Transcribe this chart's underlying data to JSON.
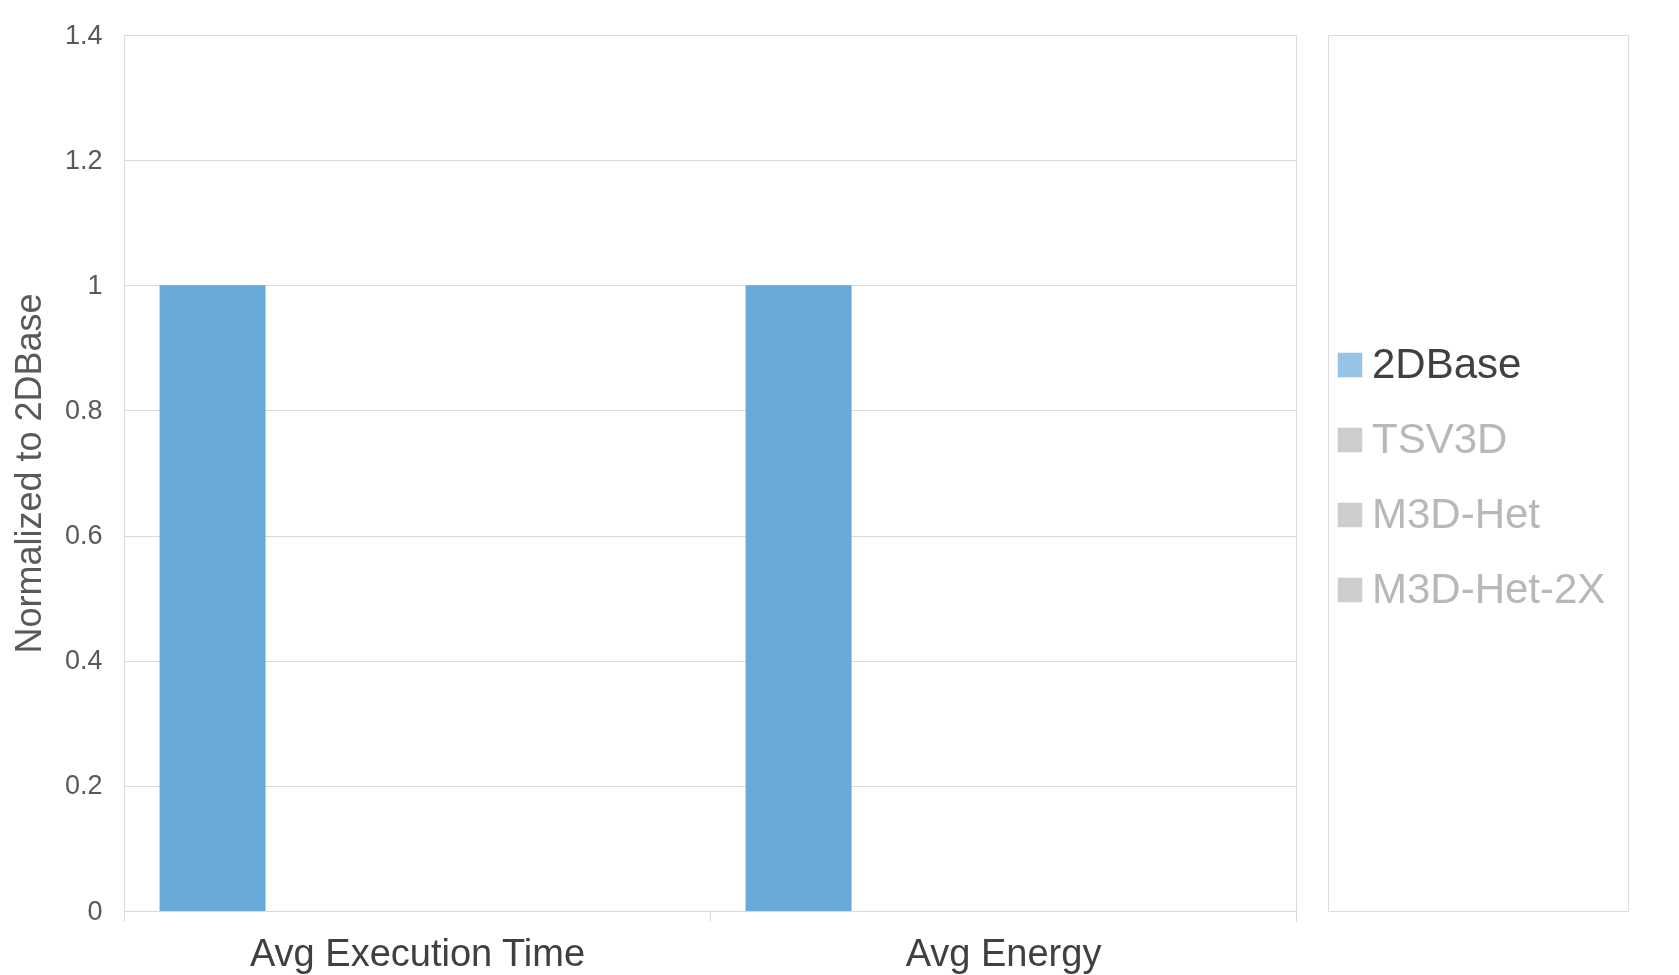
{
  "chart_data": {
    "type": "bar",
    "ylabel": "Normalized to 2DBase",
    "categories": [
      "Avg Execution Time",
      "Avg Energy"
    ],
    "series": [
      {
        "name": "2DBase",
        "color": "#6aaadb",
        "values": [
          1,
          1
        ]
      },
      {
        "name": "TSV3D",
        "color": "#b8b8b8",
        "values": [
          null,
          null
        ]
      },
      {
        "name": "M3D-Het",
        "color": "#b8b8b8",
        "values": [
          null,
          null
        ]
      },
      {
        "name": "M3D-Het-2X",
        "color": "#b8b8b8",
        "values": [
          null,
          null
        ]
      }
    ],
    "ylim": [
      0,
      1.4
    ],
    "yticks": [
      0,
      0.2,
      0.4,
      0.6,
      0.8,
      1,
      1.2,
      1.4
    ],
    "grid": "y",
    "legend": "right"
  }
}
